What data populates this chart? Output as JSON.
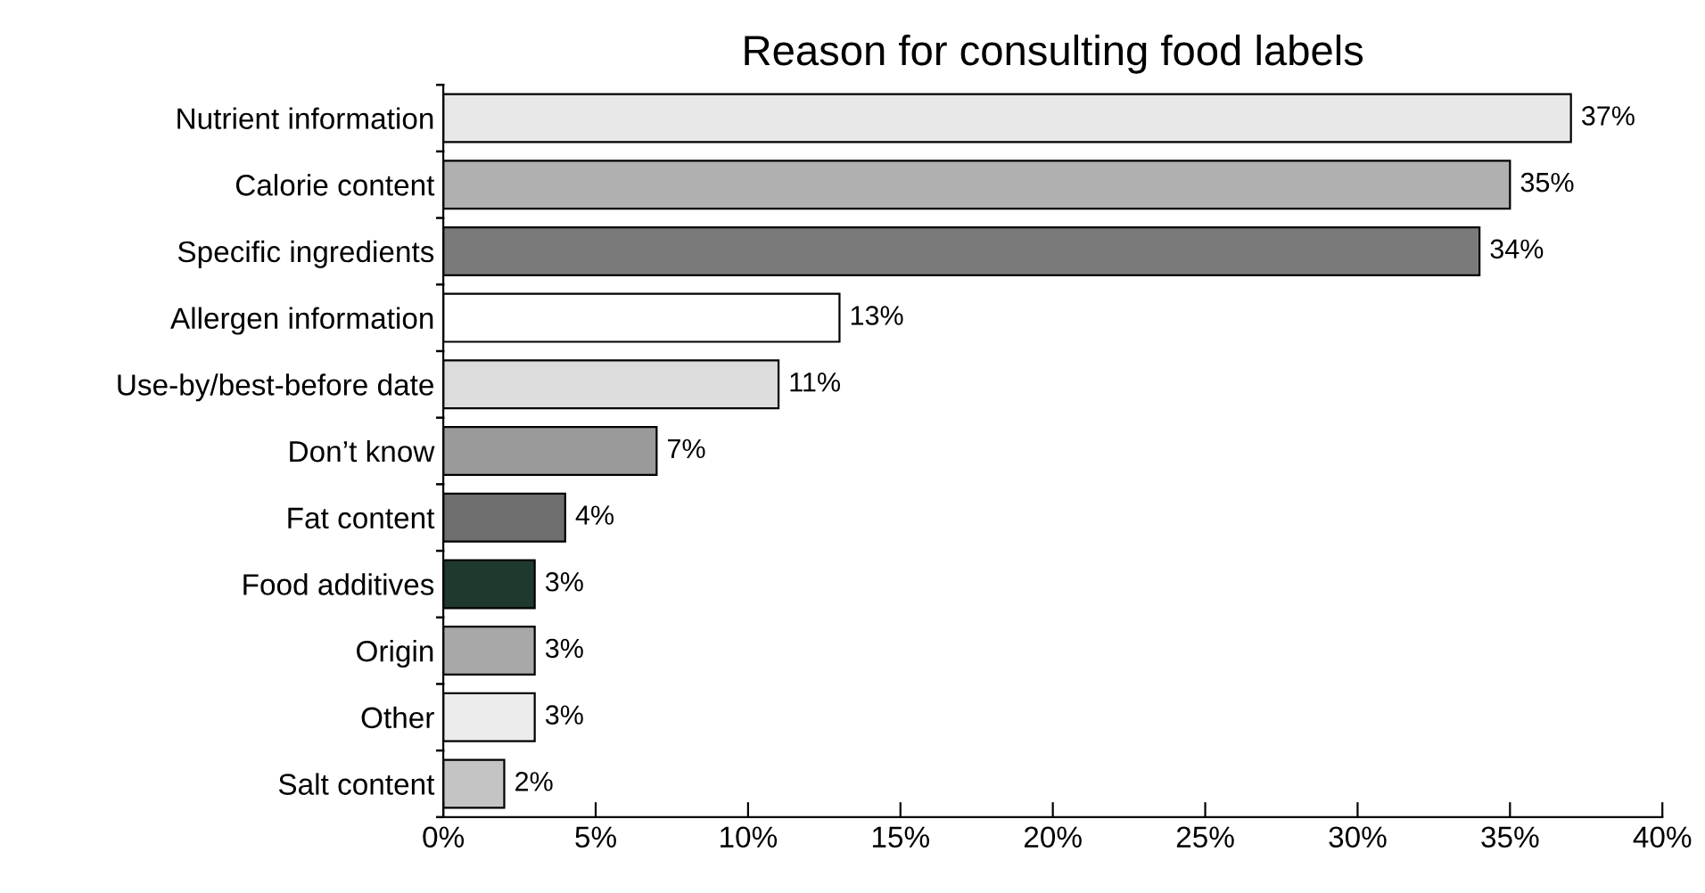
{
  "chart_data": {
    "type": "bar",
    "orientation": "horizontal",
    "title": "Reason for consulting food labels",
    "categories": [
      "Nutrient information",
      "Calorie content",
      "Specific ingredients",
      "Allergen information",
      "Use-by/best-before date",
      "Don’t know",
      "Fat content",
      "Food additives",
      "Origin",
      "Other",
      "Salt content"
    ],
    "values": [
      37,
      35,
      34,
      13,
      11,
      7,
      4,
      3,
      3,
      3,
      2
    ],
    "value_labels": [
      "37%",
      "35%",
      "34%",
      "13%",
      "11%",
      "7%",
      "4%",
      "3%",
      "3%",
      "3%",
      "2%"
    ],
    "colors": [
      "#e8e8e8",
      "#b0b0b0",
      "#7a7a7a",
      "#ffffff",
      "#dcdcdc",
      "#9a9a9a",
      "#6e6e6e",
      "#1e3a2e",
      "#a8a8a8",
      "#ececec",
      "#c4c4c4"
    ],
    "xlim": [
      0,
      40
    ],
    "xticks": [
      {
        "value": 0,
        "label": "0%"
      },
      {
        "value": 5,
        "label": "5%"
      },
      {
        "value": 10,
        "label": "10%"
      },
      {
        "value": 15,
        "label": "15%"
      },
      {
        "value": 20,
        "label": "20%"
      },
      {
        "value": 25,
        "label": "25%"
      },
      {
        "value": 30,
        "label": "30%"
      },
      {
        "value": 35,
        "label": "35%"
      },
      {
        "value": 40,
        "label": "40%"
      }
    ],
    "grid": false,
    "legend": false
  }
}
